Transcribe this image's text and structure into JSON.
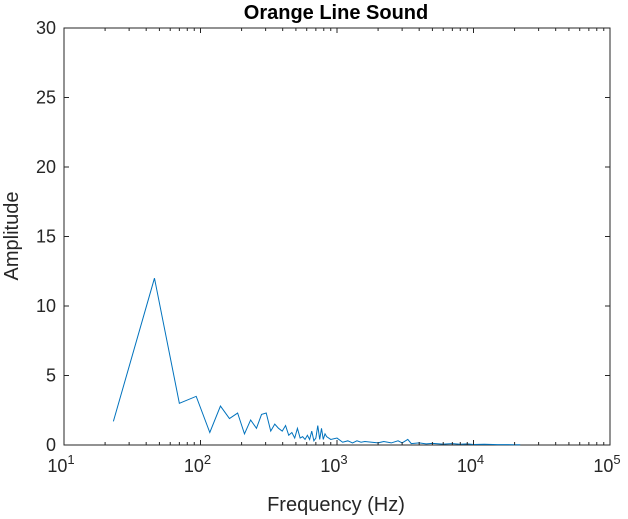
{
  "chart_data": {
    "type": "line",
    "title": "Orange Line Sound",
    "xlabel": "Frequency (Hz)",
    "ylabel": "Amplitude",
    "xscale": "log",
    "xlim": [
      10,
      100000
    ],
    "ylim": [
      0,
      30
    ],
    "grid": false,
    "x_ticks": [
      {
        "value": 10,
        "base": "10",
        "exp": "1"
      },
      {
        "value": 100,
        "base": "10",
        "exp": "2"
      },
      {
        "value": 1000,
        "base": "10",
        "exp": "3"
      },
      {
        "value": 10000,
        "base": "10",
        "exp": "4"
      },
      {
        "value": 100000,
        "base": "10",
        "exp": "5"
      }
    ],
    "y_ticks": [
      0,
      5,
      10,
      15,
      20,
      25,
      30
    ],
    "series": [
      {
        "color": "#0072BD",
        "x": [
          23,
          46,
          70,
          93,
          117,
          140,
          163,
          187,
          210,
          233,
          257,
          280,
          303,
          327,
          350,
          373,
          397,
          420,
          443,
          467,
          490,
          513,
          537,
          560,
          583,
          607,
          630,
          653,
          677,
          700,
          723,
          747,
          770,
          793,
          817,
          840,
          900,
          1000,
          1100,
          1200,
          1300,
          1400,
          1500,
          1600,
          1800,
          2000,
          2200,
          2500,
          2800,
          3000,
          3300,
          3500,
          4000,
          4500,
          5000,
          6000,
          7000,
          8000,
          9000,
          10000,
          12000,
          15000,
          20000,
          22000
        ],
        "y": [
          1.7,
          12.0,
          3.0,
          3.5,
          0.9,
          2.8,
          1.9,
          2.3,
          0.8,
          1.8,
          1.2,
          2.2,
          2.3,
          1.0,
          1.5,
          1.2,
          1.0,
          1.4,
          0.7,
          0.9,
          0.5,
          1.2,
          0.5,
          0.6,
          0.4,
          0.7,
          0.4,
          1.0,
          0.3,
          0.5,
          1.4,
          0.4,
          1.2,
          0.4,
          0.8,
          0.6,
          0.4,
          0.5,
          0.2,
          0.3,
          0.15,
          0.3,
          0.2,
          0.25,
          0.2,
          0.15,
          0.25,
          0.15,
          0.3,
          0.15,
          0.4,
          0.1,
          0.15,
          0.08,
          0.12,
          0.06,
          0.1,
          0.05,
          0.08,
          0.04,
          0.05,
          0.03,
          0.02,
          0.02
        ]
      }
    ]
  }
}
